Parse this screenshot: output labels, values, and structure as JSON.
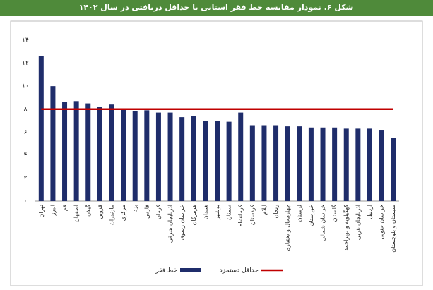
{
  "chart_data": {
    "type": "bar",
    "title": "شکل ۶. نمودار مقایسه خط فقر استانی با حداقل دریافتی در سال ۱۴۰۲",
    "categories": [
      "تهران",
      "البرز",
      "قم",
      "اصفهان",
      "گیلان",
      "قزوین",
      "مازندران",
      "مرکزی",
      "یزد",
      "فارس",
      "کرمان",
      "آذربایجان شرقی",
      "خراسان رضوی",
      "هرمزگان",
      "همدان",
      "بوشهر",
      "سمنان",
      "کرمانشاه",
      "کردستان",
      "ایلام",
      "زنجان",
      "چهارمحال و بختیاری",
      "لرستان",
      "خوزستان",
      "خراسان شمالی",
      "گلستان",
      "کهگیلویه و بویراحمد",
      "آذربایجان غربی",
      "اردبیل",
      "خراسان جنوبی",
      "سیستان و بلوچستان"
    ],
    "series": [
      {
        "name": "خط فقر",
        "color": "#1f2d6b",
        "values": [
          12.6,
          10.0,
          8.6,
          8.7,
          8.5,
          8.2,
          8.4,
          8.0,
          7.8,
          7.9,
          7.7,
          7.7,
          7.3,
          7.4,
          7.0,
          7.0,
          6.9,
          7.7,
          6.6,
          6.6,
          6.6,
          6.5,
          6.5,
          6.4,
          6.4,
          6.4,
          6.3,
          6.3,
          6.3,
          6.2,
          5.5
        ]
      },
      {
        "name": "حداقل دستمزد",
        "color": "#c00000",
        "type": "line",
        "values": [
          8,
          8,
          8,
          8,
          8,
          8,
          8,
          8,
          8,
          8,
          8,
          8,
          8,
          8,
          8,
          8,
          8,
          8,
          8,
          8,
          8,
          8,
          8,
          8,
          8,
          8,
          8,
          8,
          8,
          8,
          8
        ]
      }
    ],
    "ylim": [
      0,
      14
    ],
    "yticks": [
      {
        "value": 0,
        "label": "۰"
      },
      {
        "value": 2,
        "label": "۲"
      },
      {
        "value": 4,
        "label": "۴"
      },
      {
        "value": 6,
        "label": "۶"
      },
      {
        "value": 8,
        "label": "۸"
      },
      {
        "value": 10,
        "label": "۱۰"
      },
      {
        "value": 12,
        "label": "۱۲"
      },
      {
        "value": 14,
        "label": "۱۴"
      }
    ],
    "grid": false,
    "legend": "bottom"
  }
}
